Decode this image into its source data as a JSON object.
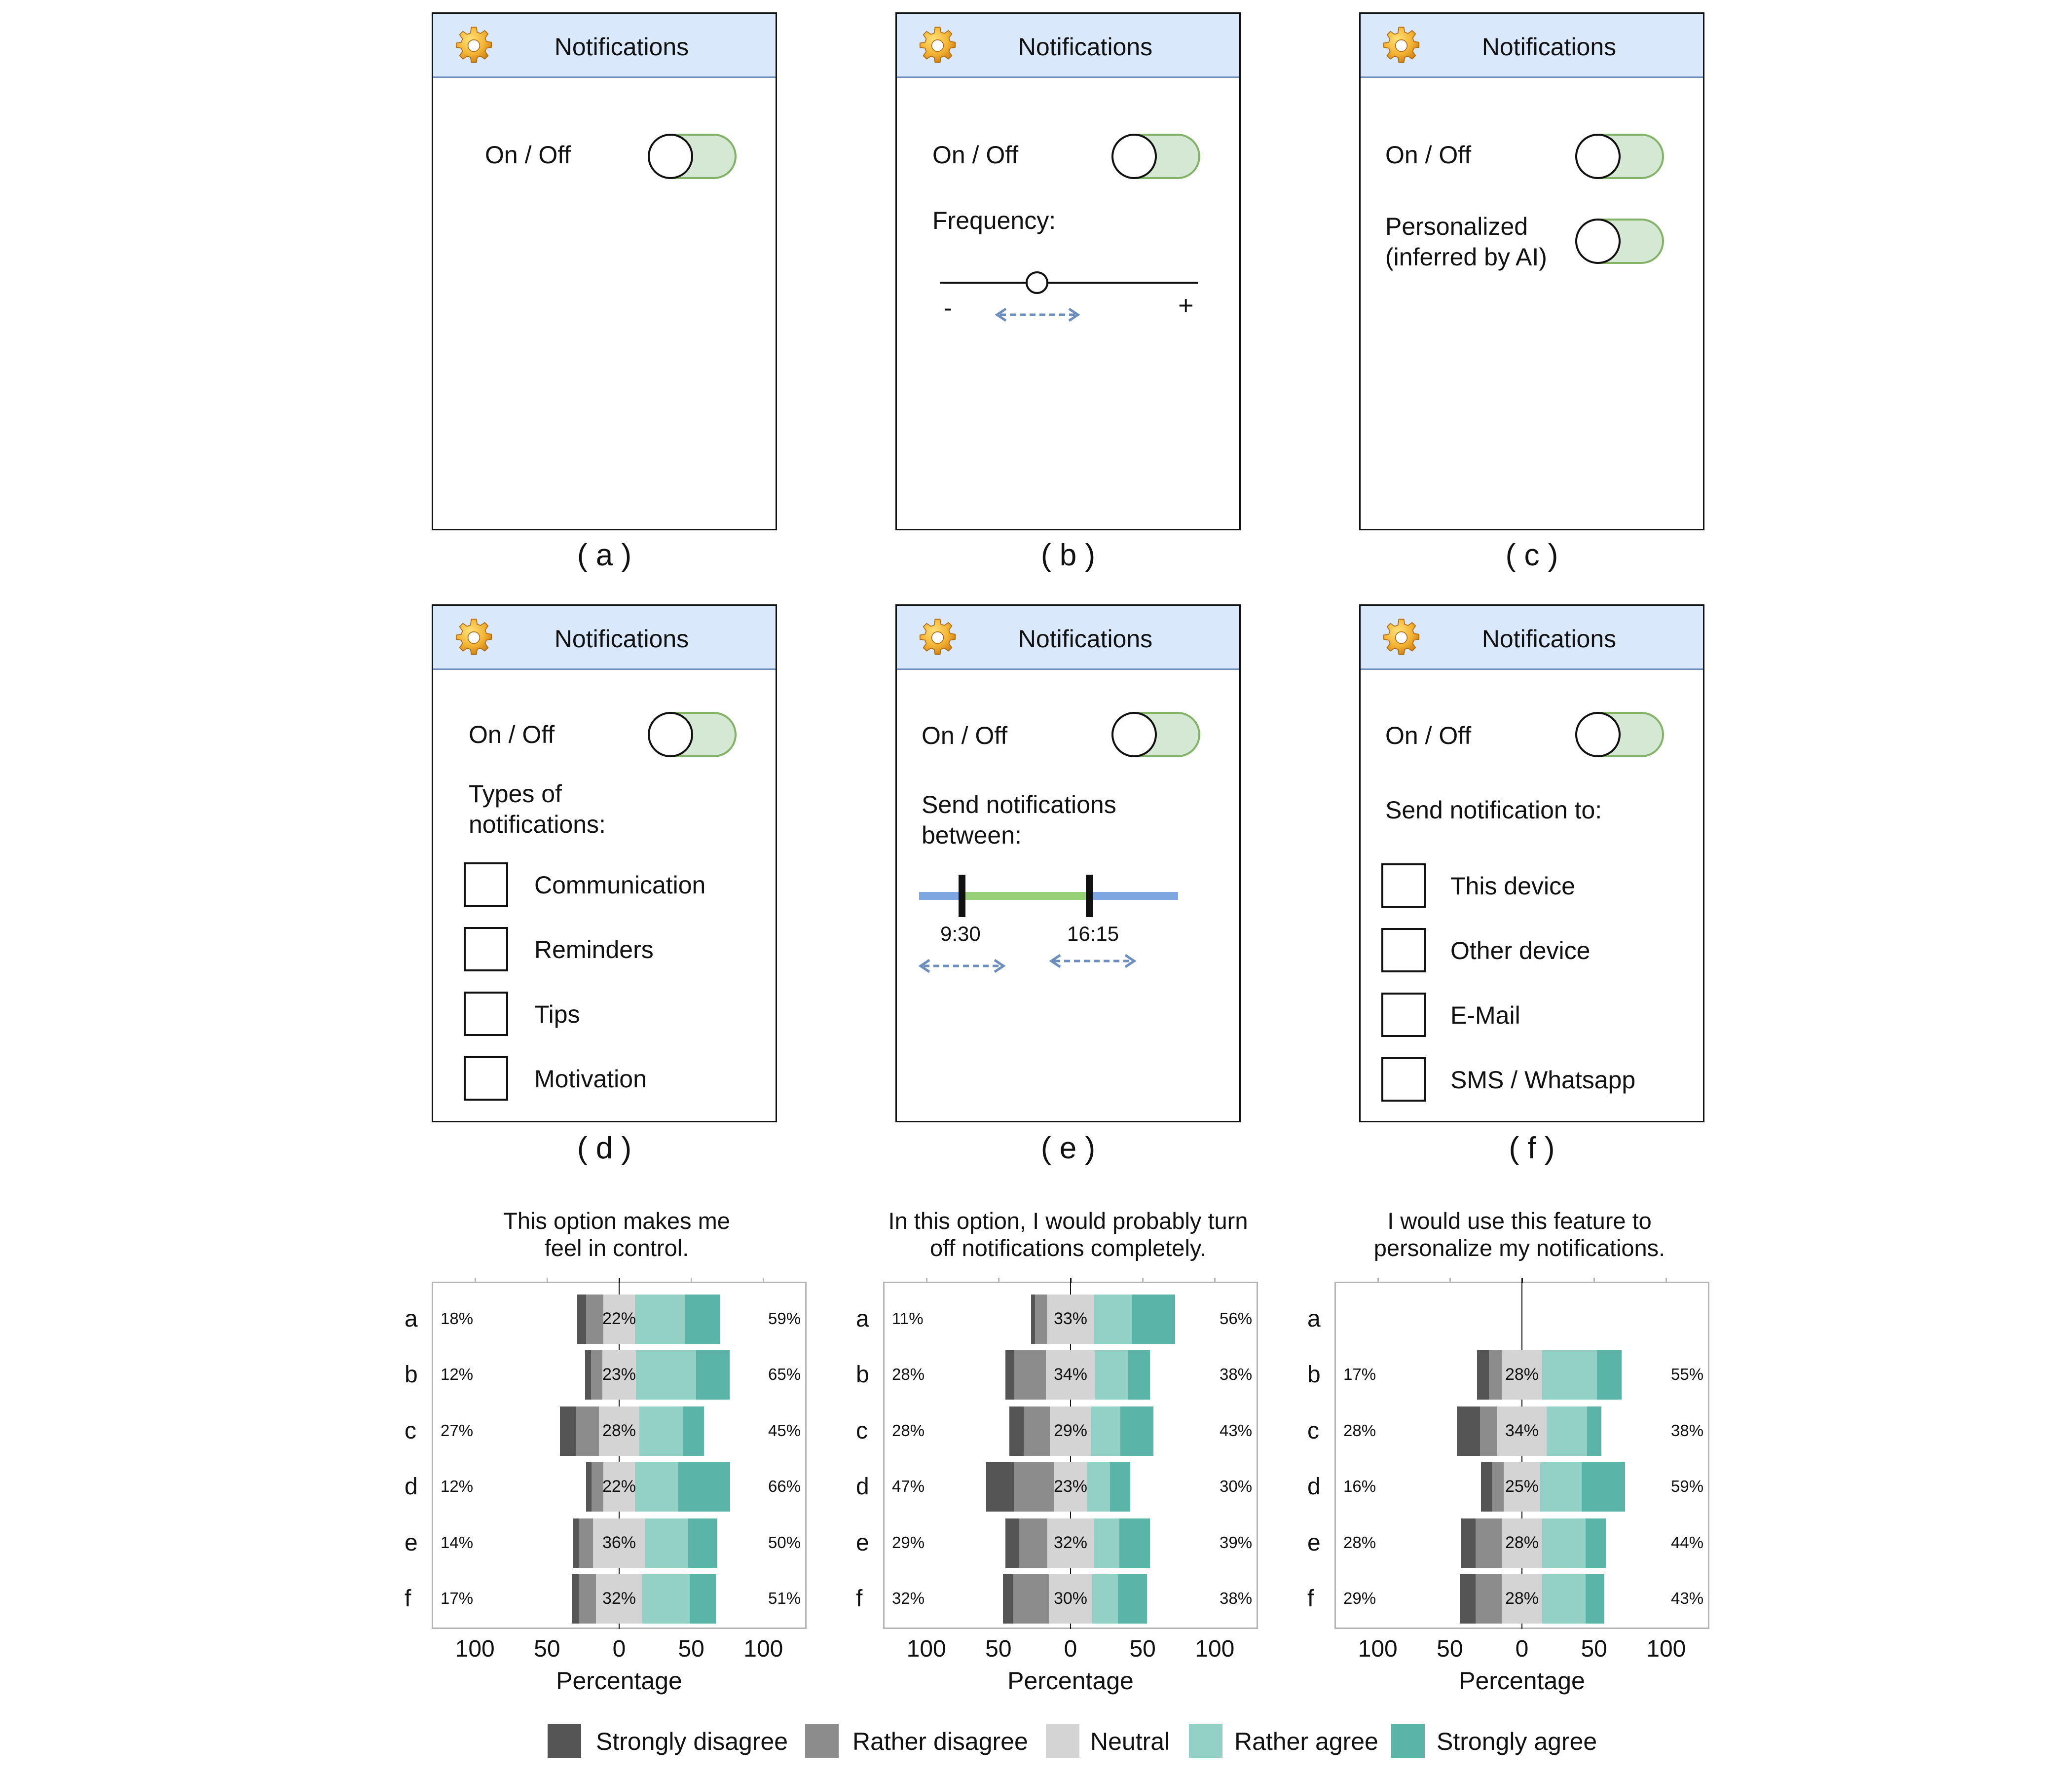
{
  "mockups": [
    {
      "id": "a",
      "title": "Notifications",
      "caption": "( a )",
      "onoff": "On / Off"
    },
    {
      "id": "b",
      "title": "Notifications",
      "caption": "( b )",
      "onoff": "On / Off",
      "frequency_label": "Frequency:",
      "slider_min": "-",
      "slider_max": "+"
    },
    {
      "id": "c",
      "title": "Notifications",
      "caption": "( c )",
      "onoff": "On / Off",
      "personalized_line1": "Personalized",
      "personalized_line2": "(inferred by AI)"
    },
    {
      "id": "d",
      "title": "Notifications",
      "caption": "( d )",
      "onoff": "On / Off",
      "types_line1": "Types of",
      "types_line2": "notifications:",
      "options": [
        "Communication",
        "Reminders",
        "Tips",
        "Motivation"
      ]
    },
    {
      "id": "e",
      "title": "Notifications",
      "caption": "( e )",
      "onoff": "On / Off",
      "send_line1": "Send notifications",
      "send_line2": "between:",
      "time_start": "9:30",
      "time_end": "16:15"
    },
    {
      "id": "f",
      "title": "Notifications",
      "caption": "( f )",
      "onoff": "On / Off",
      "send_to_label": "Send notification to:",
      "options": [
        "This device",
        "Other device",
        "E-Mail",
        "SMS / Whatsapp"
      ]
    }
  ],
  "colors": {
    "header_bg": "#dae8fc",
    "header_border": "#6c8ebf",
    "toggle_bg": "#d5e8d4",
    "toggle_border": "#82b366",
    "slider_arrow": "#6c8ebf",
    "range_blue": "#7ea6e0",
    "range_green": "#97d077",
    "strongly_disagree": "#555555",
    "rather_disagree": "#8c8c8c",
    "neutral": "#d4d4d4",
    "rather_agree": "#93d1c6",
    "strongly_agree": "#5ab5a8"
  },
  "chart_data": [
    {
      "type": "bar",
      "title_line1": "This option makes me",
      "title_line2": "feel in control.",
      "xlabel": "Percentage",
      "xticks": [
        "100",
        "50",
        "0",
        "50",
        "100"
      ],
      "xlim": [
        -130,
        130
      ],
      "categories": [
        "a",
        "b",
        "c",
        "d",
        "e",
        "f"
      ],
      "left_pct": [
        "18%",
        "12%",
        "27%",
        "12%",
        "14%",
        "17%"
      ],
      "neutral_pct": [
        "22%",
        "23%",
        "28%",
        "22%",
        "36%",
        "32%"
      ],
      "right_pct": [
        "59%",
        "65%",
        "45%",
        "66%",
        "50%",
        "51%"
      ],
      "series": [
        {
          "name": "Strongly disagree",
          "values": [
            6,
            4,
            11,
            4,
            4,
            5
          ]
        },
        {
          "name": "Rather disagree",
          "values": [
            12,
            8,
            16,
            8,
            10,
            12
          ]
        },
        {
          "name": "Neutral",
          "values": [
            22,
            23,
            28,
            22,
            36,
            32
          ]
        },
        {
          "name": "Rather agree",
          "values": [
            35,
            42,
            30,
            30,
            30,
            33
          ]
        },
        {
          "name": "Strongly agree",
          "values": [
            24,
            23,
            15,
            36,
            20,
            18
          ]
        }
      ]
    },
    {
      "type": "bar",
      "title_line1": "In this option, I would probably turn",
      "title_line2": "off notifications completely.",
      "xlabel": "Percentage",
      "xticks": [
        "100",
        "50",
        "0",
        "50",
        "100"
      ],
      "xlim": [
        -130,
        130
      ],
      "categories": [
        "a",
        "b",
        "c",
        "d",
        "e",
        "f"
      ],
      "left_pct": [
        "11%",
        "28%",
        "28%",
        "47%",
        "29%",
        "32%"
      ],
      "neutral_pct": [
        "33%",
        "34%",
        "29%",
        "23%",
        "32%",
        "30%"
      ],
      "right_pct": [
        "56%",
        "38%",
        "43%",
        "30%",
        "39%",
        "38%"
      ],
      "series": [
        {
          "name": "Strongly disagree",
          "values": [
            3,
            6,
            10,
            19,
            9,
            7
          ]
        },
        {
          "name": "Rather disagree",
          "values": [
            8,
            22,
            18,
            28,
            20,
            25
          ]
        },
        {
          "name": "Neutral",
          "values": [
            33,
            34,
            29,
            23,
            32,
            30
          ]
        },
        {
          "name": "Rather agree",
          "values": [
            26,
            23,
            20,
            16,
            18,
            18
          ]
        },
        {
          "name": "Strongly agree",
          "values": [
            30,
            15,
            23,
            14,
            21,
            20
          ]
        }
      ]
    },
    {
      "type": "bar",
      "title_line1": "I would use this feature to",
      "title_line2": "personalize my notifications.",
      "xlabel": "Percentage",
      "xticks": [
        "100",
        "50",
        "0",
        "50",
        "100"
      ],
      "xlim": [
        -130,
        130
      ],
      "categories": [
        "a",
        "b",
        "c",
        "d",
        "e",
        "f"
      ],
      "left_pct": [
        "",
        "17%",
        "28%",
        "16%",
        "28%",
        "29%"
      ],
      "neutral_pct": [
        "",
        "28%",
        "34%",
        "25%",
        "28%",
        "28%"
      ],
      "right_pct": [
        "",
        "55%",
        "38%",
        "59%",
        "44%",
        "43%"
      ],
      "series": [
        {
          "name": "Strongly disagree",
          "values": [
            0,
            8,
            16,
            8,
            10,
            11
          ]
        },
        {
          "name": "Rather disagree",
          "values": [
            0,
            9,
            12,
            8,
            18,
            18
          ]
        },
        {
          "name": "Neutral",
          "values": [
            0,
            28,
            34,
            25,
            28,
            28
          ]
        },
        {
          "name": "Rather agree",
          "values": [
            0,
            38,
            28,
            29,
            30,
            30
          ]
        },
        {
          "name": "Strongly agree",
          "values": [
            0,
            17,
            10,
            30,
            14,
            13
          ]
        }
      ]
    }
  ],
  "legend": [
    "Strongly disagree",
    "Rather disagree",
    "Neutral",
    "Rather agree",
    "Strongly agree"
  ]
}
